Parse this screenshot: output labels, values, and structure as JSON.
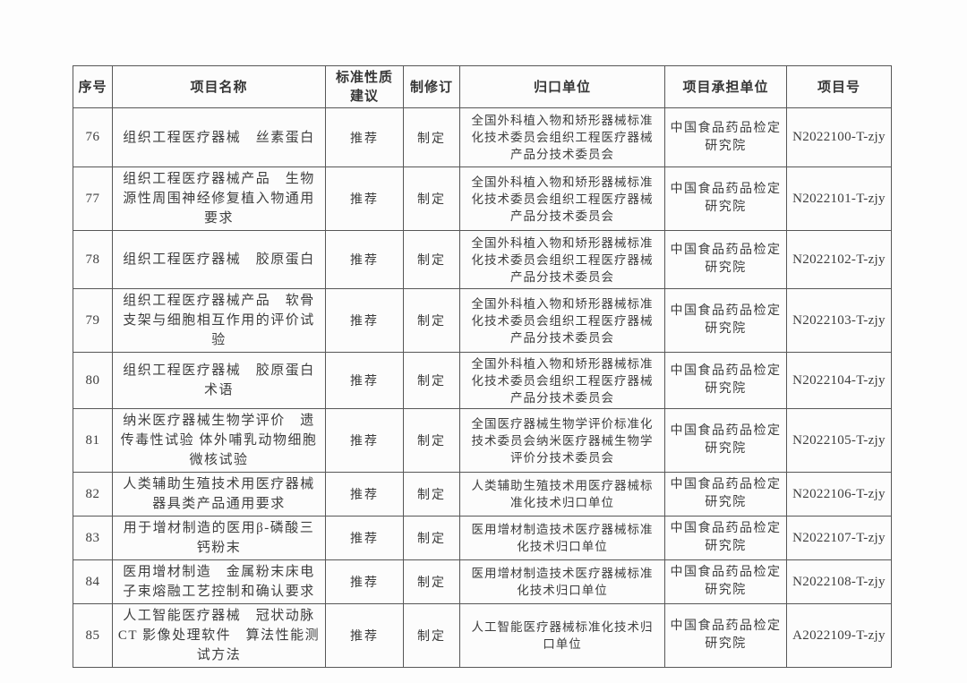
{
  "table": {
    "headers": [
      "序号",
      "项目名称",
      "标准性质建议",
      "制修订",
      "归口单位",
      "项目承担单位",
      "项目号"
    ],
    "rows": [
      {
        "no": "76",
        "name": "组织工程医疗器械　丝素蛋白",
        "nature": "推荐",
        "revision": "制定",
        "org": "全国外科植入物和矫形器械标准化技术委员会组织工程医疗器械产品分技术委员会",
        "undertaker": "中国食品药品检定研究院",
        "code": "N2022100-T-zjy"
      },
      {
        "no": "77",
        "name": "组织工程医疗器械产品　生物源性周围神经修复植入物通用要求",
        "nature": "推荐",
        "revision": "制定",
        "org": "全国外科植入物和矫形器械标准化技术委员会组织工程医疗器械产品分技术委员会",
        "undertaker": "中国食品药品检定研究院",
        "code": "N2022101-T-zjy"
      },
      {
        "no": "78",
        "name": "组织工程医疗器械　胶原蛋白",
        "nature": "推荐",
        "revision": "制定",
        "org": "全国外科植入物和矫形器械标准化技术委员会组织工程医疗器械产品分技术委员会",
        "undertaker": "中国食品药品检定研究院",
        "code": "N2022102-T-zjy"
      },
      {
        "no": "79",
        "name": "组织工程医疗器械产品　软骨支架与细胞相互作用的评价试验",
        "nature": "推荐",
        "revision": "制定",
        "org": "全国外科植入物和矫形器械标准化技术委员会组织工程医疗器械产品分技术委员会",
        "undertaker": "中国食品药品检定研究院",
        "code": "N2022103-T-zjy"
      },
      {
        "no": "80",
        "name": "组织工程医疗器械　胶原蛋白 术语",
        "nature": "推荐",
        "revision": "制定",
        "org": "全国外科植入物和矫形器械标准化技术委员会组织工程医疗器械产品分技术委员会",
        "undertaker": "中国食品药品检定研究院",
        "code": "N2022104-T-zjy"
      },
      {
        "no": "81",
        "name": "纳米医疗器械生物学评价　遗传毒性试验 体外哺乳动物细胞微核试验",
        "nature": "推荐",
        "revision": "制定",
        "org": "全国医疗器械生物学评价标准化技术委员会纳米医疗器械生物学评价分技术委员会",
        "undertaker": "中国食品药品检定研究院",
        "code": "N2022105-T-zjy"
      },
      {
        "no": "82",
        "name": "人类辅助生殖技术用医疗器械　器具类产品通用要求",
        "nature": "推荐",
        "revision": "制定",
        "org": "人类辅助生殖技术用医疗器械标准化技术归口单位",
        "undertaker": "中国食品药品检定研究院",
        "code": "N2022106-T-zjy"
      },
      {
        "no": "83",
        "name": "用于增材制造的医用β-磷酸三钙粉末",
        "nature": "推荐",
        "revision": "制定",
        "org": "医用增材制造技术医疗器械标准化技术归口单位",
        "undertaker": "中国食品药品检定研究院",
        "code": "N2022107-T-zjy"
      },
      {
        "no": "84",
        "name": "医用增材制造　金属粉末床电子束熔融工艺控制和确认要求",
        "nature": "推荐",
        "revision": "制定",
        "org": "医用增材制造技术医疗器械标准化技术归口单位",
        "undertaker": "中国食品药品检定研究院",
        "code": "N2022108-T-zjy"
      },
      {
        "no": "85",
        "name": "人工智能医疗器械　冠状动脉 CT 影像处理软件　算法性能测试方法",
        "nature": "推荐",
        "revision": "制定",
        "org": "人工智能医疗器械标准化技术归口单位",
        "undertaker": "中国食品药品检定研究院",
        "code": "A2022109-T-zjy"
      }
    ]
  }
}
